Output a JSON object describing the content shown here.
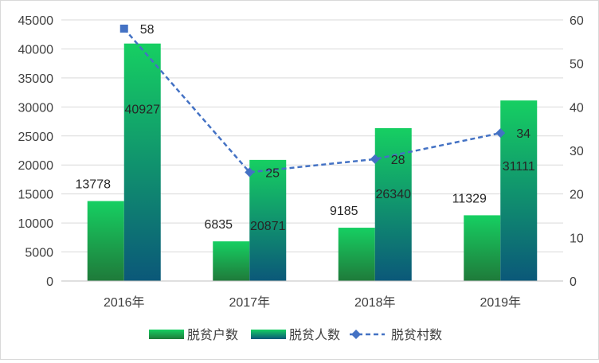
{
  "chart_data": {
    "type": "bar",
    "categories": [
      "2016年",
      "2017年",
      "2018年",
      "2019年"
    ],
    "series": [
      {
        "name": "脱贫户数",
        "type": "bar",
        "axis": "left",
        "values": [
          13778,
          6835,
          9185,
          11329
        ]
      },
      {
        "name": "脱贫人数",
        "type": "bar",
        "axis": "left",
        "values": [
          40927,
          20871,
          26340,
          31111
        ]
      },
      {
        "name": "脱贫村数",
        "type": "line",
        "axis": "right",
        "values": [
          58,
          25,
          28,
          34
        ]
      }
    ],
    "y_left": {
      "min": 0,
      "max": 45000,
      "step": 5000
    },
    "y_right": {
      "min": 0,
      "max": 60,
      "step": 10
    },
    "grid": "horizontal",
    "legend": "bottom",
    "colors": {
      "households_top": "#16cf62",
      "households_bottom": "#1f7a3a",
      "people_top": "#16cf62",
      "people_bottom": "#0b5879",
      "villages_line": "#4472c4",
      "gridline": "#d9d9d9",
      "axis_text": "#404040"
    }
  }
}
